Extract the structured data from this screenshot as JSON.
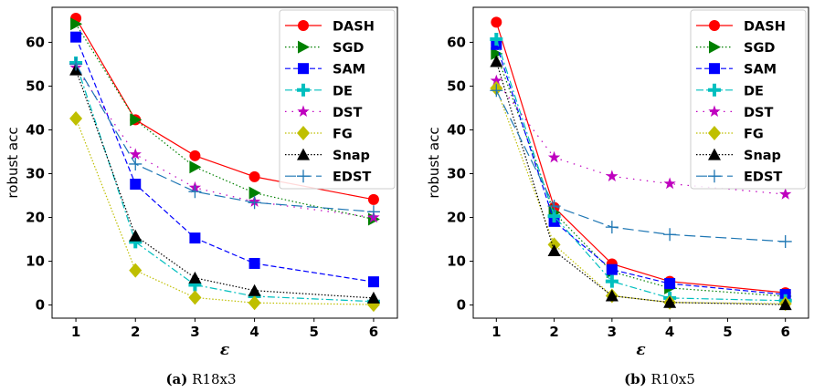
{
  "chart_data": [
    {
      "type": "line",
      "panel_label": "(a)",
      "caption": "R18x3",
      "xlabel": "ε",
      "ylabel": "robust acc",
      "x": [
        1,
        2,
        3,
        4,
        5,
        6
      ],
      "xlim": [
        0.6,
        6.4
      ],
      "ylim": [
        -3,
        68
      ],
      "xticks": [
        1,
        2,
        3,
        4,
        5,
        6
      ],
      "yticks": [
        0,
        10,
        20,
        30,
        40,
        50,
        60
      ],
      "grid": false,
      "legend_position": "top-right",
      "series": [
        {
          "name": "DASH",
          "x": [
            1,
            2,
            3,
            4,
            6
          ],
          "values": [
            65.5,
            42.3,
            34.1,
            29.3,
            24.1
          ]
        },
        {
          "name": "SGD",
          "x": [
            1,
            2,
            3,
            4,
            6
          ],
          "values": [
            64.2,
            42.3,
            31.5,
            25.6,
            19.6
          ]
        },
        {
          "name": "SAM",
          "x": [
            1,
            2,
            3,
            4,
            6
          ],
          "values": [
            61.2,
            27.6,
            15.3,
            9.5,
            5.3
          ]
        },
        {
          "name": "DE",
          "x": [
            1,
            2,
            3,
            4,
            6
          ],
          "values": [
            55.3,
            14.4,
            4.6,
            2.0,
            0.8
          ]
        },
        {
          "name": "DST",
          "x": [
            1,
            2,
            3,
            4,
            6
          ],
          "values": [
            54.2,
            34.4,
            26.8,
            23.6,
            20.0
          ]
        },
        {
          "name": "FG",
          "x": [
            1,
            2,
            3,
            4,
            6
          ],
          "values": [
            42.6,
            7.9,
            1.7,
            0.5,
            0.1
          ]
        },
        {
          "name": "Snap",
          "x": [
            1,
            2,
            3,
            4,
            6
          ],
          "values": [
            53.7,
            15.8,
            6.2,
            3.3,
            1.6
          ]
        },
        {
          "name": "EDST",
          "x": [
            1,
            2,
            3,
            4,
            6
          ],
          "values": [
            55.0,
            32.2,
            25.9,
            23.4,
            21.3
          ]
        }
      ]
    },
    {
      "type": "line",
      "panel_label": "(b)",
      "caption": "R10x5",
      "xlabel": "ε",
      "ylabel": "robust acc",
      "x": [
        1,
        2,
        3,
        4,
        5,
        6
      ],
      "xlim": [
        0.6,
        6.4
      ],
      "ylim": [
        -3,
        68
      ],
      "xticks": [
        1,
        2,
        3,
        4,
        5,
        6
      ],
      "yticks": [
        0,
        10,
        20,
        30,
        40,
        50,
        60
      ],
      "grid": false,
      "legend_position": "top-right",
      "series": [
        {
          "name": "DASH",
          "x": [
            1,
            2,
            3,
            4,
            6
          ],
          "values": [
            64.6,
            22.3,
            9.4,
            5.4,
            2.8
          ]
        },
        {
          "name": "SGD",
          "x": [
            1,
            2,
            3,
            4,
            6
          ],
          "values": [
            57.4,
            21.1,
            7.6,
            3.9,
            2.0
          ]
        },
        {
          "name": "SAM",
          "x": [
            1,
            2,
            3,
            4,
            6
          ],
          "values": [
            59.5,
            19.1,
            8.1,
            4.9,
            2.4
          ]
        },
        {
          "name": "DE",
          "x": [
            1,
            2,
            3,
            4,
            6
          ],
          "values": [
            60.7,
            20.3,
            5.4,
            1.6,
            1.0
          ]
        },
        {
          "name": "DST",
          "x": [
            1,
            2,
            3,
            4,
            6
          ],
          "values": [
            51.2,
            33.7,
            29.4,
            27.7,
            25.3
          ]
        },
        {
          "name": "FG",
          "x": [
            1,
            2,
            3,
            4,
            6
          ],
          "values": [
            49.5,
            13.8,
            2.1,
            0.6,
            0.3
          ]
        },
        {
          "name": "Snap",
          "x": [
            1,
            2,
            3,
            4,
            6
          ],
          "values": [
            55.6,
            12.4,
            2.1,
            0.6,
            0.1
          ]
        },
        {
          "name": "EDST",
          "x": [
            1,
            2,
            3,
            4,
            6
          ],
          "values": [
            49.0,
            22.6,
            17.8,
            16.1,
            14.5
          ]
        }
      ]
    }
  ],
  "styles": {
    "DASH": {
      "color": "#ff0000",
      "dash": "",
      "marker": "circle"
    },
    "SGD": {
      "color": "#008000",
      "dash": "1.5,2.5",
      "marker": "triangle-right"
    },
    "SAM": {
      "color": "#0000ff",
      "dash": "6,3",
      "marker": "square"
    },
    "DE": {
      "color": "#00bfbf",
      "dash": "8,3,2,3",
      "marker": "plus"
    },
    "DST": {
      "color": "#bf00bf",
      "dash": "1.5,6",
      "marker": "star"
    },
    "FG": {
      "color": "#bfbf00",
      "dash": "1.5,2",
      "marker": "diamond"
    },
    "Snap": {
      "color": "#000000",
      "dash": "1.5,2",
      "marker": "triangle-up"
    },
    "EDST": {
      "color": "#1f77b4",
      "dash": "12,5",
      "marker": "thin-plus"
    }
  }
}
